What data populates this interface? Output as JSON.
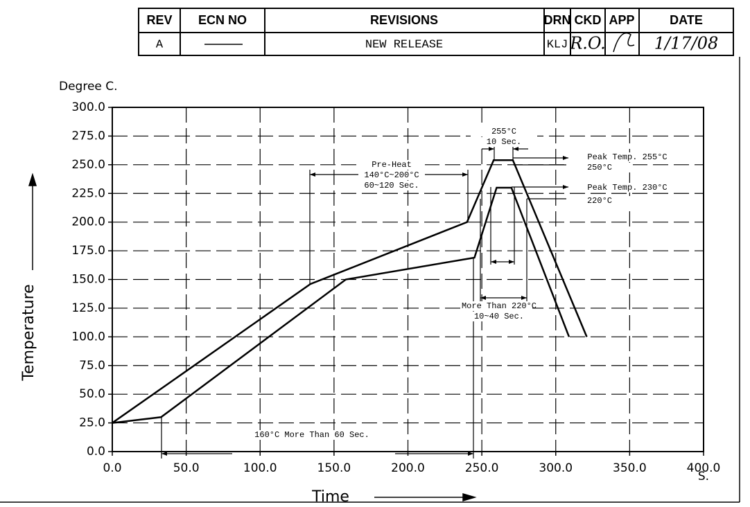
{
  "revision_table": {
    "headers": [
      "REV",
      "ECN NO",
      "REVISIONS",
      "DRN",
      "CKD",
      "APP",
      "DATE"
    ],
    "row": {
      "rev": "A",
      "revisions": "NEW RELEASE",
      "drn": "KLJ",
      "ckd": "R.O.",
      "date": "1/17/08"
    }
  },
  "chart_data": {
    "type": "line",
    "y_unit": "Degree C.",
    "ylabel": "Temperature",
    "xlabel": "Time",
    "x_unit": "S.",
    "xlim": [
      0,
      400
    ],
    "ylim": [
      0,
      300
    ],
    "xticks": [
      {
        "value": 0,
        "label": "0.0"
      },
      {
        "value": 50,
        "label": "50.0"
      },
      {
        "value": 100,
        "label": "100.0"
      },
      {
        "value": 150,
        "label": "150.0"
      },
      {
        "value": 200,
        "label": "200.0"
      },
      {
        "value": 250,
        "label": "250.0"
      },
      {
        "value": 300,
        "label": "300.0"
      },
      {
        "value": 350,
        "label": "350.0"
      },
      {
        "value": 400,
        "label": "400.0"
      }
    ],
    "yticks": [
      {
        "value": 0,
        "label": "0.0"
      },
      {
        "value": 25,
        "label": "25.0"
      },
      {
        "value": 50,
        "label": "50.0"
      },
      {
        "value": 75,
        "label": "75.0"
      },
      {
        "value": 100,
        "label": "100.0"
      },
      {
        "value": 125,
        "label": "125.0"
      },
      {
        "value": 150,
        "label": "150.0"
      },
      {
        "value": 175,
        "label": "175.0"
      },
      {
        "value": 200,
        "label": "200.0"
      },
      {
        "value": 225,
        "label": "225.0"
      },
      {
        "value": 250,
        "label": "250.0"
      },
      {
        "value": 275,
        "label": "275.0"
      },
      {
        "value": 300,
        "label": "300.0"
      }
    ],
    "grid": true,
    "series": [
      {
        "color": "#000000",
        "x": [
          0,
          134,
          240,
          258,
          271,
          321
        ],
        "values": [
          25,
          146,
          200,
          254,
          254,
          100
        ]
      },
      {
        "color": "#000000",
        "x": [
          0,
          33,
          158,
          245,
          260,
          270,
          309
        ],
        "values": [
          25,
          30,
          150,
          169,
          230,
          230,
          100
        ]
      }
    ],
    "annotations": [
      "255°C",
      "10 Sec.",
      "Peak Temp. 255°C",
      "250°C",
      "Pre-Heat",
      "140°C~200°C",
      "60~120 Sec.",
      "Peak Temp. 230°C",
      "220°C",
      "More Than 220°C",
      "10~40 Sec.",
      "160°C More Than 60 Sec."
    ]
  }
}
